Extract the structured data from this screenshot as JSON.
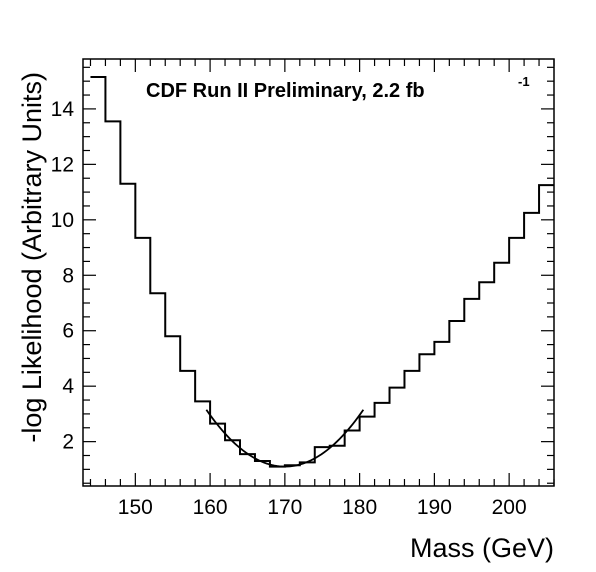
{
  "chart_data": {
    "type": "line",
    "title": "",
    "annotation": {
      "text": "CDF Run II Preliminary, 2.2 fb",
      "superscript": "-1"
    },
    "xlabel": "Mass (GeV)",
    "ylabel": "-log Likelihood (Arbitrary Units)",
    "xlim": [
      143,
      206
    ],
    "ylim": [
      0.4,
      15.8
    ],
    "x_ticks": [
      150,
      160,
      170,
      180,
      190,
      200
    ],
    "y_ticks": [
      2,
      4,
      6,
      8,
      10,
      12,
      14
    ],
    "x_tick_labels": [
      "150",
      "160",
      "170",
      "180",
      "190",
      "200"
    ],
    "y_tick_labels": [
      "2",
      "4",
      "6",
      "8",
      "10",
      "12",
      "14"
    ],
    "grid": false,
    "series": [
      {
        "style": "histogram-step",
        "bin_width": 2,
        "bin_low_edges": [
          144,
          146,
          148,
          150,
          152,
          154,
          156,
          158,
          160,
          162,
          164,
          166,
          168,
          170,
          172,
          174,
          176,
          178,
          180,
          182,
          184,
          186,
          188,
          190,
          192,
          194,
          196,
          198,
          200,
          202,
          204
        ],
        "values": [
          15.15,
          13.55,
          11.3,
          9.35,
          7.35,
          5.8,
          4.55,
          3.45,
          2.65,
          2.05,
          1.55,
          1.3,
          1.1,
          1.15,
          1.25,
          1.8,
          1.85,
          2.4,
          2.9,
          3.4,
          3.95,
          4.55,
          5.15,
          5.6,
          6.35,
          7.15,
          7.75,
          8.45,
          9.35,
          10.25,
          11.25
        ]
      },
      {
        "style": "fit-curve",
        "function": "parabola",
        "x_range": [
          159.5,
          180.5
        ],
        "vertex": [
          170,
          1.1
        ],
        "curvature": 0.0186
      }
    ]
  }
}
